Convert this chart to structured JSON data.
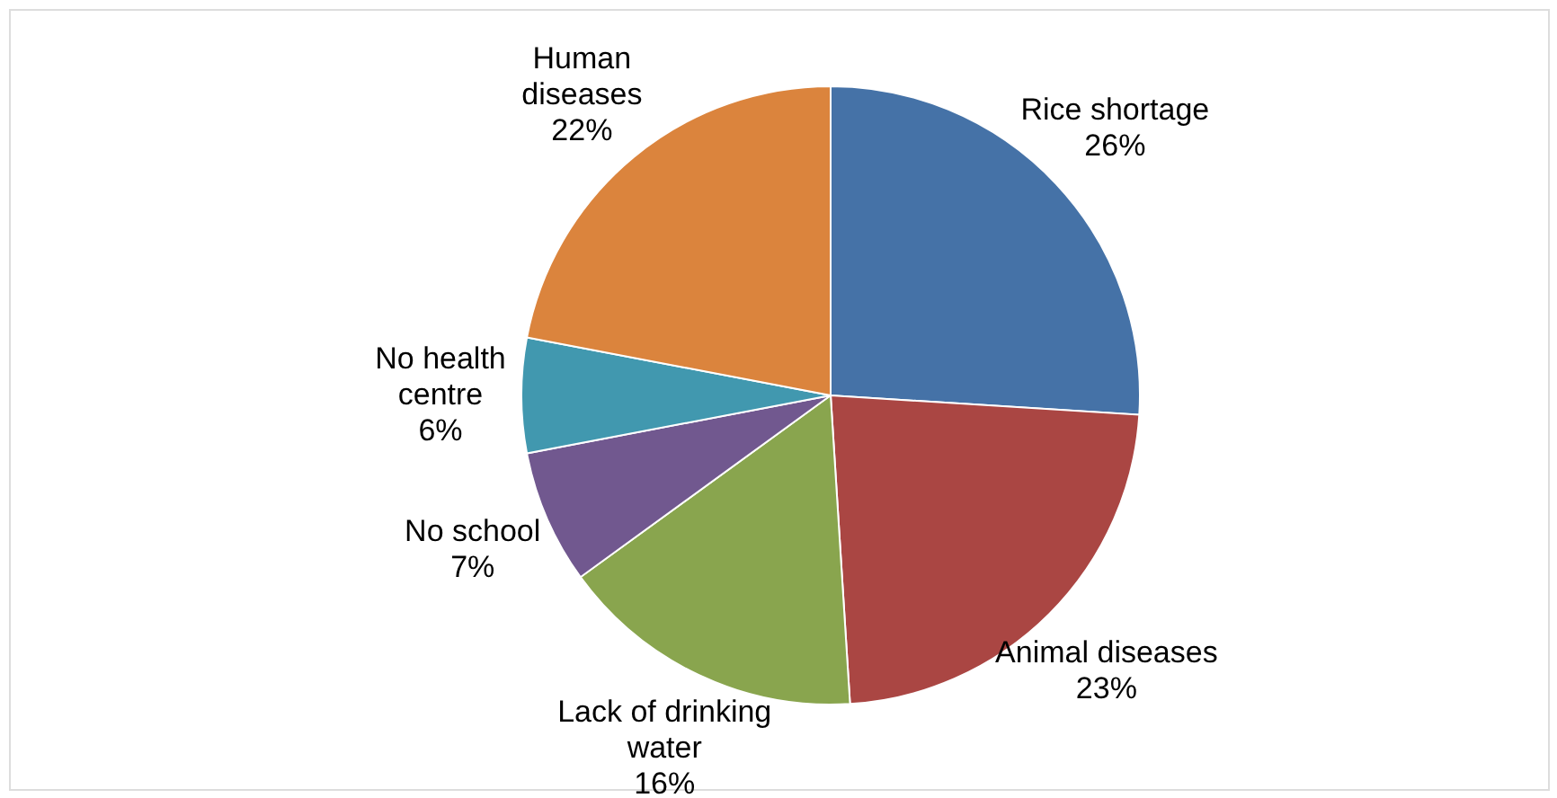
{
  "chart_data": {
    "type": "pie",
    "categories": [
      "Rice shortage",
      "Animal diseases",
      "Lack of drinking\nwater",
      "No school",
      "No health\ncentre",
      "Human\ndiseases"
    ],
    "values": [
      26,
      23,
      16,
      7,
      6,
      22
    ],
    "value_labels": [
      "26%",
      "23%",
      "16%",
      "7%",
      "6%",
      "22%"
    ],
    "colors": [
      "#4572a7",
      "#aa4643",
      "#89a54e",
      "#71588f",
      "#4198af",
      "#db843d"
    ]
  }
}
